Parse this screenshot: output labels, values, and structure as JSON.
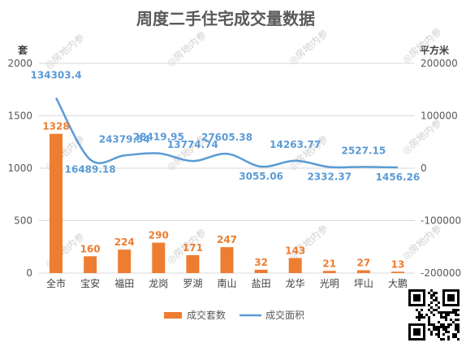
{
  "chart_data": {
    "type": "bar+line",
    "title": "周度二手住宅成交量数据",
    "y_left_unit": "套",
    "y_right_unit": "平方米",
    "categories": [
      "全市",
      "宝安",
      "福田",
      "龙岗",
      "罗湖",
      "南山",
      "盐田",
      "龙华",
      "光明",
      "坪山",
      "大鹏"
    ],
    "series": [
      {
        "name": "成交套数",
        "type": "bar",
        "axis": "left",
        "color": "#ed7d31",
        "values": [
          1328,
          160,
          224,
          290,
          171,
          247,
          32,
          143,
          21,
          27,
          13
        ],
        "labels": [
          "1328",
          "160",
          "224",
          "290",
          "171",
          "247",
          "32",
          "143",
          "21",
          "27",
          "13"
        ]
      },
      {
        "name": "成交面积",
        "type": "line",
        "axis": "right",
        "color": "#5b9bd5",
        "values": [
          134303.4,
          16489.18,
          24379.54,
          28419.95,
          13774.74,
          27605.38,
          3055.06,
          14263.77,
          2332.37,
          2527.15,
          1456.26
        ],
        "labels": [
          "134303.4",
          "16489.18",
          "24379.54",
          "28419.95",
          "13774.74",
          "27605.38",
          "3055.06",
          "14263.77",
          "2332.37",
          "2527.15",
          "1456.26"
        ]
      }
    ],
    "y_left": {
      "min": 0,
      "max": 2000,
      "ticks": [
        "0",
        "500",
        "1000",
        "1500",
        "2000"
      ],
      "tick_values": [
        0,
        500,
        1000,
        1500,
        2000
      ]
    },
    "y_right": {
      "min": -200000,
      "max": 200000,
      "ticks": [
        "-200000",
        "-100000",
        "0",
        "100000",
        "200000"
      ],
      "tick_values": [
        -200000,
        -100000,
        0,
        100000,
        200000
      ]
    },
    "grid": true,
    "legend_position": "bottom",
    "watermark": "房地内参"
  }
}
